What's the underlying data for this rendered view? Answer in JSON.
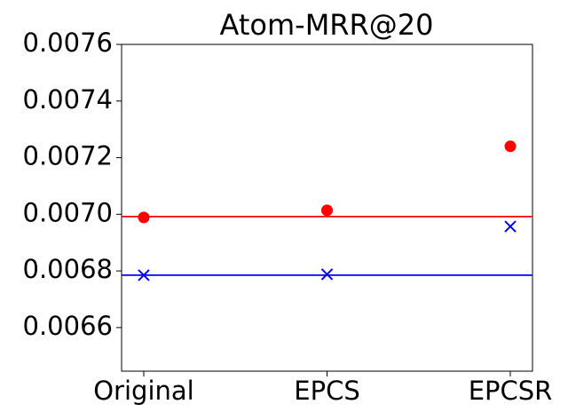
{
  "chart_data": {
    "type": "scatter",
    "title": "Atom-MRR@20",
    "categories": [
      "Original",
      "EPCS",
      "EPCSR"
    ],
    "series": [
      {
        "color": "#ff0000",
        "marker": "o",
        "values": [
          0.006989,
          0.007014,
          0.00724
        ]
      },
      {
        "color": "#0000ff",
        "marker": "x",
        "values": [
          0.006785,
          0.006788,
          0.006957
        ]
      }
    ],
    "hlines": [
      {
        "value": 0.006992,
        "color": "#ff0000"
      },
      {
        "value": 0.006785,
        "color": "#0000ff"
      }
    ],
    "ylim": [
      0.006446,
      0.0076
    ],
    "yticks": [
      0.0066,
      0.0068,
      {
        "value": 0.007,
        "label": "0.0070"
      },
      0.0072,
      0.0074,
      0.0076
    ],
    "grid": false
  }
}
